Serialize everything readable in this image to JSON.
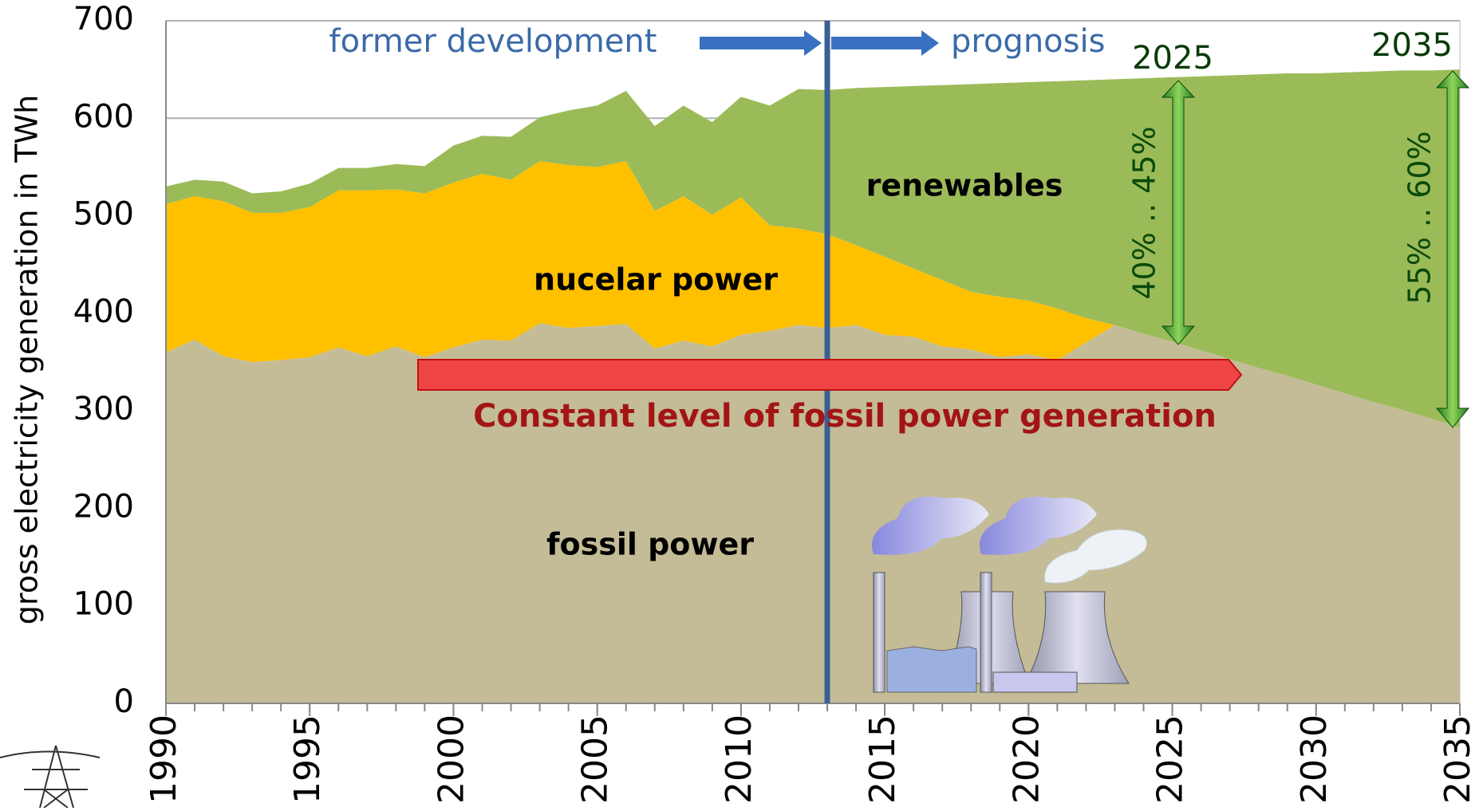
{
  "chart_data": {
    "type": "stacked_area",
    "y_label": "gross electricity generation in TWh",
    "x": [
      1990,
      1991,
      1992,
      1993,
      1994,
      1995,
      1996,
      1997,
      1998,
      1999,
      2000,
      2001,
      2002,
      2003,
      2004,
      2005,
      2006,
      2007,
      2008,
      2009,
      2010,
      2011,
      2012,
      2013,
      2014,
      2015,
      2016,
      2017,
      2018,
      2019,
      2020,
      2021,
      2022,
      2023,
      2024,
      2025,
      2026,
      2027,
      2028,
      2029,
      2030,
      2031,
      2032,
      2033,
      2034,
      2035
    ],
    "series": [
      {
        "name": "fossil power",
        "color": "#c4bc96",
        "values": [
          360,
          373,
          356,
          350,
          352,
          355,
          365,
          356,
          366,
          355,
          365,
          373,
          372,
          390,
          385,
          387,
          389,
          364,
          372,
          366,
          378,
          382,
          388,
          385,
          388,
          378,
          376,
          366,
          363,
          355,
          358,
          352,
          370,
          388,
          379,
          371,
          362,
          353,
          344,
          336,
          327,
          318,
          309,
          301,
          292,
          283
        ]
      },
      {
        "name": "nucelar power",
        "color": "#ffc000",
        "values": [
          152,
          147,
          159,
          153,
          151,
          154,
          161,
          170,
          161,
          168,
          169,
          170,
          165,
          166,
          167,
          163,
          167,
          141,
          148,
          135,
          141,
          108,
          99,
          96,
          82,
          80,
          70,
          68,
          59,
          62,
          55,
          53,
          25,
          0,
          0,
          0,
          0,
          0,
          0,
          0,
          0,
          0,
          0,
          0,
          0,
          0
        ]
      },
      {
        "name": "renewables",
        "color": "#9bbb59",
        "values": [
          18,
          17,
          20,
          20,
          22,
          24,
          23,
          23,
          26,
          28,
          38,
          39,
          44,
          45,
          56,
          63,
          72,
          87,
          93,
          95,
          103,
          123,
          143,
          148,
          161,
          174,
          187,
          200,
          213,
          219,
          224,
          233,
          244,
          252,
          262,
          271,
          281,
          291,
          301,
          310,
          319,
          329,
          339,
          348,
          357,
          367
        ]
      }
    ],
    "xlim": [
      1990,
      2035
    ],
    "xticks": [
      1990,
      1995,
      2000,
      2005,
      2010,
      2015,
      2020,
      2025,
      2030,
      2035
    ],
    "ylim": [
      0,
      700
    ],
    "yticks": [
      0,
      100,
      200,
      300,
      400,
      500,
      600,
      700
    ],
    "grid": true,
    "divider": 2013,
    "annotations": {
      "former": "former development",
      "prognosis": "prognosis",
      "y2025": "2025",
      "y2035": "2035",
      "share2025": "40% .. 45%",
      "share2035": "55% .. 60%",
      "constant": "Constant level of fossil power generation"
    }
  }
}
